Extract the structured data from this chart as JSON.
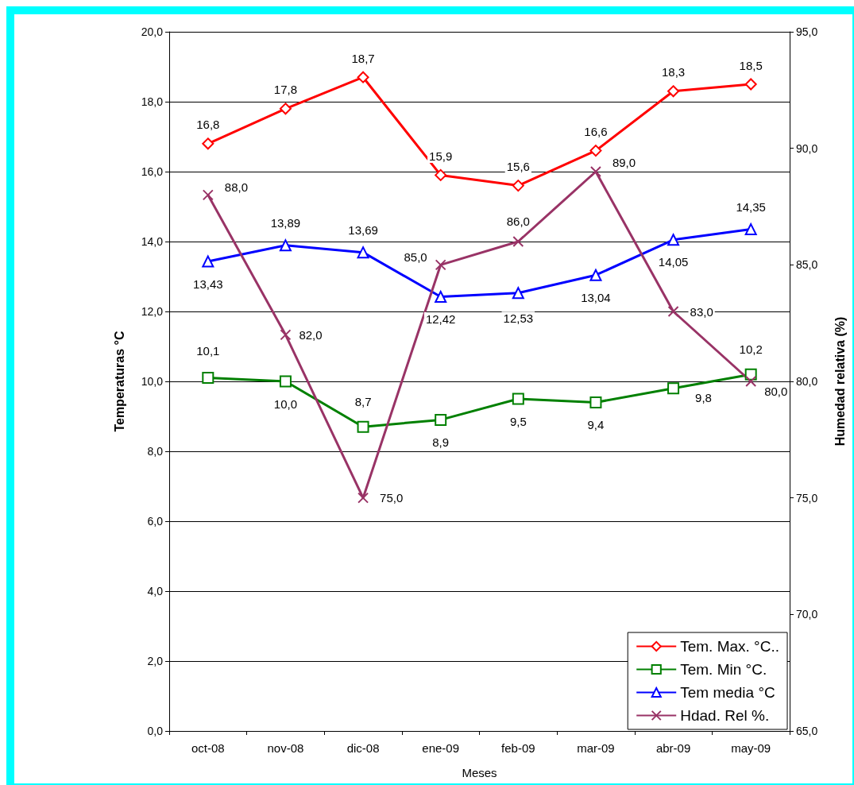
{
  "chart_data": {
    "type": "line",
    "xlabel": "Meses",
    "ylabel": "Temperaturas °C",
    "y2label": "Humedad relativa (%)",
    "categories": [
      "oct-08",
      "nov-08",
      "dic-08",
      "ene-09",
      "feb-09",
      "mar-09",
      "abr-09",
      "may-09"
    ],
    "series": [
      {
        "name": "Tem. Max. °C..",
        "color": "#ff0000",
        "marker": "diamond",
        "values": [
          16.8,
          17.8,
          18.7,
          15.9,
          15.6,
          16.6,
          18.3,
          18.5
        ],
        "value_labels": [
          "16,8",
          "17,8",
          "18,7",
          "15,9",
          "15,6",
          "16,6",
          "18,3",
          "18,5"
        ]
      },
      {
        "name": "Tem. Min °C.",
        "color": "#008000",
        "marker": "square",
        "values": [
          10.1,
          10.0,
          8.7,
          8.9,
          9.5,
          9.4,
          9.8,
          10.2
        ],
        "value_labels": [
          "10,1",
          "10,0",
          "8,7",
          "8,9",
          "9,5",
          "9,4",
          "9,8",
          "10,2"
        ]
      },
      {
        "name": "Tem media °C",
        "color": "#0000ff",
        "marker": "triangle",
        "values": [
          13.43,
          13.89,
          13.69,
          12.42,
          12.53,
          13.04,
          14.05,
          14.35
        ],
        "value_labels": [
          "13,43",
          "13,89",
          "13,69",
          "12,42",
          "12,53",
          "13,04",
          "14,05",
          "14,35"
        ]
      },
      {
        "name": "Hdad. Rel %.",
        "color": "#993366",
        "marker": "cross",
        "axis": "y2",
        "values": [
          88,
          82,
          75,
          85,
          86,
          89,
          83,
          80
        ],
        "value_labels": [
          "88,0",
          "82,0",
          "75,0",
          "85,0",
          "86,0",
          "89,0",
          "83,0",
          "80,0"
        ]
      }
    ],
    "ylim": [
      0,
      20
    ],
    "yticks": [
      {
        "value": 0,
        "label": "0,0"
      },
      {
        "value": 2,
        "label": "2,0"
      },
      {
        "value": 4,
        "label": "4,0"
      },
      {
        "value": 6,
        "label": "6,0"
      },
      {
        "value": 8,
        "label": "8,0"
      },
      {
        "value": 10,
        "label": "10,0"
      },
      {
        "value": 12,
        "label": "12,0"
      },
      {
        "value": 14,
        "label": "14,0"
      },
      {
        "value": 16,
        "label": "16,0"
      },
      {
        "value": 18,
        "label": "18,0"
      },
      {
        "value": 20,
        "label": "20,0"
      }
    ],
    "y2lim": [
      65,
      95
    ],
    "y2ticks": [
      {
        "value": 65,
        "label": "65,0"
      },
      {
        "value": 70,
        "label": "70,0"
      },
      {
        "value": 75,
        "label": "75,0"
      },
      {
        "value": 80,
        "label": "80,0"
      },
      {
        "value": 85,
        "label": "85,0"
      },
      {
        "value": 90,
        "label": "90,0"
      },
      {
        "value": 95,
        "label": "95,0"
      }
    ],
    "grid": "y",
    "legend": "bottom right",
    "line_style": "solid"
  }
}
